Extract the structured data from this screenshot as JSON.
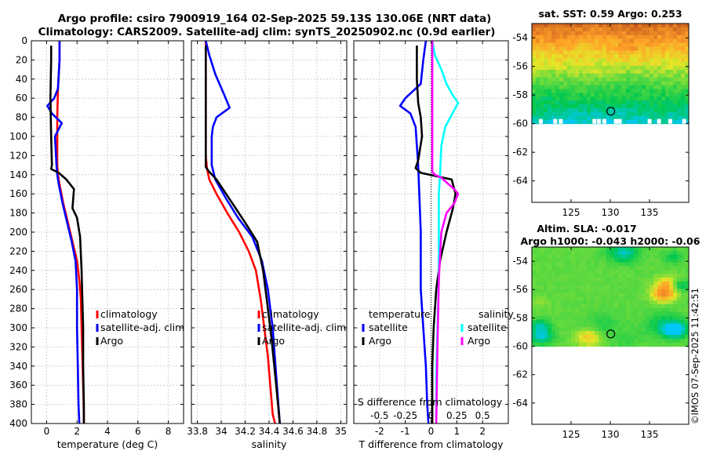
{
  "figure": {
    "title_line1": "Argo profile: csiro 7900919_164 02-Sep-2025 59.13S 130.06E (NRT data)",
    "title_line2": "Climatology: CARS2009. Satellite-adj clim: synTS_20250902.nc (0.9d earlier)",
    "credit": "©IMOS 07-Sep-2025 11:42:51"
  },
  "depth_axis": {
    "ylim": [
      0,
      400
    ],
    "ticks": [
      0,
      20,
      40,
      60,
      80,
      100,
      120,
      140,
      160,
      180,
      200,
      220,
      240,
      260,
      280,
      300,
      320,
      340,
      360,
      380,
      400
    ],
    "ticks_labeled_on": "left panel only"
  },
  "colors": {
    "climatology": "#ff0000",
    "satellite": "#0000ff",
    "argo": "#000000",
    "salinity_satellite": "#00ffff",
    "salinity_argo": "#ff00ff",
    "zero_line": "#000000",
    "map_circle": "#000000"
  },
  "chart_data": [
    {
      "id": "temperature",
      "type": "line",
      "xlabel": "temperature (deg C)",
      "ylabel": "",
      "xlim": [
        -1,
        9
      ],
      "ylim": [
        400,
        0
      ],
      "xticks": [
        0,
        2,
        4,
        6,
        8
      ],
      "xtick_labels": [
        "0",
        "2",
        "4",
        "6",
        "8"
      ],
      "grid": true,
      "legend_position": "lower-right",
      "series": [
        {
          "name": "climatology",
          "color": "#ff0000",
          "x": [
            0.85,
            0.85,
            0.75,
            0.7,
            0.7,
            0.7,
            0.75,
            0.85,
            1.1,
            1.4,
            1.7,
            2.0,
            2.15,
            2.25,
            2.3,
            2.35,
            2.4,
            2.45,
            2.45
          ],
          "y": [
            0,
            20,
            50,
            80,
            110,
            130,
            140,
            150,
            170,
            190,
            210,
            230,
            250,
            270,
            300,
            330,
            360,
            390,
            400
          ]
        },
        {
          "name": "satellite-adj. clim",
          "color": "#0000ff",
          "x": [
            0.85,
            0.85,
            0.75,
            0.5,
            0.05,
            0.35,
            1.0,
            0.55,
            0.65,
            0.7,
            0.8,
            1.05,
            1.35,
            1.65,
            1.9,
            2.0,
            2.0,
            2.05,
            2.1,
            2.15
          ],
          "y": [
            0,
            20,
            50,
            60,
            68,
            76,
            86,
            100,
            130,
            140,
            150,
            170,
            190,
            210,
            230,
            260,
            300,
            340,
            380,
            400
          ]
        },
        {
          "name": "Argo",
          "color": "#000000",
          "x": [
            0.3,
            0.3,
            0.25,
            0.3,
            0.35,
            0.3,
            0.8,
            1.3,
            1.8,
            1.7,
            2.0,
            2.2,
            2.3,
            2.35,
            2.4,
            2.4,
            2.45,
            2.45
          ],
          "y": [
            5,
            20,
            60,
            100,
            130,
            134,
            138,
            145,
            155,
            175,
            185,
            205,
            240,
            270,
            300,
            340,
            380,
            400
          ]
        }
      ],
      "legend": [
        {
          "label": "climatology",
          "color": "#ff0000"
        },
        {
          "label": "satellite-adj. clim",
          "color": "#0000ff"
        },
        {
          "label": "Argo",
          "color": "#000000"
        }
      ]
    },
    {
      "id": "salinity",
      "type": "line",
      "xlabel": "salinity",
      "ylabel": "",
      "xlim": [
        33.75,
        35.05
      ],
      "ylim": [
        400,
        0
      ],
      "xticks": [
        33.8,
        34,
        34.2,
        34.4,
        34.6,
        34.8,
        35
      ],
      "xtick_labels": [
        "33.8",
        "34",
        "34.2",
        "34.4",
        "34.6",
        "34.8",
        "35"
      ],
      "grid": true,
      "legend_position": "lower-right",
      "series": [
        {
          "name": "climatology",
          "color": "#ff0000",
          "x": [
            33.87,
            33.87,
            33.87,
            33.87,
            33.88,
            33.9,
            33.96,
            34.05,
            34.15,
            34.23,
            34.29,
            34.33,
            34.36,
            34.39,
            34.41,
            34.43,
            34.45
          ],
          "y": [
            0,
            40,
            80,
            120,
            133,
            145,
            160,
            180,
            200,
            220,
            240,
            270,
            300,
            330,
            360,
            390,
            400
          ]
        },
        {
          "name": "satellite-adj. clim",
          "color": "#0000ff",
          "x": [
            33.87,
            33.9,
            33.95,
            34.02,
            34.07,
            33.96,
            33.93,
            33.92,
            33.92,
            33.95,
            34.04,
            34.14,
            34.26,
            34.34,
            34.39,
            34.43,
            34.46,
            34.49
          ],
          "y": [
            0,
            15,
            35,
            55,
            70,
            80,
            90,
            100,
            130,
            145,
            165,
            185,
            205,
            230,
            260,
            300,
            350,
            400
          ]
        },
        {
          "name": "Argo",
          "color": "#000000",
          "x": [
            33.87,
            33.87,
            33.87,
            33.87,
            33.87,
            33.9,
            33.96,
            34.04,
            34.12,
            34.2,
            34.3,
            34.35,
            34.38,
            34.42,
            34.46,
            34.49
          ],
          "y": [
            5,
            40,
            80,
            120,
            132,
            137,
            145,
            160,
            175,
            190,
            210,
            240,
            270,
            310,
            360,
            400
          ]
        }
      ],
      "legend": [
        {
          "label": "climatology",
          "color": "#ff0000"
        },
        {
          "label": "satellite-adj. clim",
          "color": "#0000ff"
        },
        {
          "label": "Argo",
          "color": "#000000"
        }
      ]
    },
    {
      "id": "difference",
      "type": "line",
      "xlabel": "T difference from climatology",
      "top_axis_label": "S difference from climatology",
      "xlim": [
        -3,
        3
      ],
      "ylim": [
        400,
        0
      ],
      "xticks": [
        -2,
        -1,
        0,
        1,
        2
      ],
      "xtick_labels": [
        "-2",
        "-1",
        "0",
        "1",
        "2"
      ],
      "s_ticks": [
        -0.5,
        -0.25,
        0,
        0.25,
        0.5
      ],
      "s_tick_labels": [
        "-0.5",
        "-0.25",
        "0",
        "0.25",
        "0.5"
      ],
      "s_scale": 4,
      "zero_line": "dotted",
      "grid": true,
      "series": [
        {
          "name": "temperature satellite",
          "color": "#0000ff",
          "x": [
            -0.2,
            -0.3,
            -0.4,
            -1.0,
            -1.2,
            -0.8,
            -0.6,
            -0.5,
            -0.4,
            -0.4,
            -0.3,
            -0.2,
            -0.15,
            -0.1
          ],
          "y": [
            0,
            20,
            45,
            60,
            68,
            76,
            90,
            130,
            200,
            260,
            300,
            340,
            380,
            400
          ]
        },
        {
          "name": "temperature Argo",
          "color": "#000000",
          "x": [
            -0.55,
            -0.55,
            -0.5,
            -0.4,
            -0.35,
            -0.5,
            -0.6,
            -0.4,
            0.8,
            0.95,
            0.85,
            0.6,
            0.35,
            0.2,
            0.1,
            0.05,
            0.05,
            0.05
          ],
          "y": [
            5,
            40,
            65,
            80,
            100,
            125,
            133,
            138,
            145,
            160,
            175,
            200,
            230,
            260,
            300,
            340,
            380,
            400
          ]
        },
        {
          "name": "salinity satellite",
          "color": "#00ffff",
          "x": [
            0.05,
            0.15,
            0.4,
            0.6,
            0.8,
            1.05,
            0.85,
            0.55,
            0.4,
            0.35,
            0.3,
            0.3,
            0.3,
            0.25,
            0.2,
            0.2
          ],
          "y": [
            0,
            15,
            30,
            45,
            55,
            65,
            75,
            90,
            110,
            140,
            160,
            200,
            250,
            300,
            350,
            400
          ]
        },
        {
          "name": "salinity Argo",
          "color": "#ff00ff",
          "x": [
            0.05,
            0.05,
            0.05,
            0.05,
            0.05,
            0.05,
            0.15,
            0.4,
            0.6,
            0.9,
            1.05,
            0.9,
            0.6,
            0.4,
            0.3,
            0.25,
            0.2
          ],
          "y": [
            0,
            40,
            80,
            120,
            133,
            137,
            140,
            143,
            148,
            155,
            160,
            170,
            180,
            200,
            250,
            320,
            400
          ]
        }
      ],
      "legend_temperature": {
        "header": "temperature",
        "items": [
          {
            "label": "satellite",
            "color": "#0000ff"
          },
          {
            "label": "Argo",
            "color": "#000000"
          }
        ]
      },
      "legend_salinity": {
        "header": "salinity",
        "items": [
          {
            "label": "satellite",
            "color": "#00ffff"
          },
          {
            "label": "Argo",
            "color": "#ff00ff"
          }
        ]
      }
    }
  ],
  "maps": [
    {
      "id": "sst-map",
      "type": "heatmap",
      "title_lines": [
        "sat. SST: 0.59 Argo: 0.253"
      ],
      "xlim": [
        120,
        140
      ],
      "ylim": [
        -65.5,
        -53
      ],
      "xticks": [
        125,
        130,
        135
      ],
      "yticks": [
        -54,
        -56,
        -58,
        -60,
        -62,
        -64
      ],
      "xtick_labels": [
        "125",
        "130",
        "135"
      ],
      "ytick_labels": [
        "-54",
        "-56",
        "-58",
        "-60",
        "-62",
        "-64"
      ],
      "data_extent_lat": [
        -60,
        -53
      ],
      "argo_position": {
        "lon": 130.06,
        "lat": -59.13
      }
    },
    {
      "id": "sla-map",
      "type": "heatmap",
      "title_lines": [
        "Altim. SLA: -0.017",
        "Argo h1000: -0.043 h2000: -0.06"
      ],
      "xlim": [
        120,
        140
      ],
      "ylim": [
        -65.5,
        -53
      ],
      "xticks": [
        125,
        130,
        135
      ],
      "yticks": [
        -54,
        -56,
        -58,
        -60,
        -62,
        -64
      ],
      "xtick_labels": [
        "125",
        "130",
        "135"
      ],
      "ytick_labels": [
        "-54",
        "-56",
        "-58",
        "-60",
        "-62",
        "-64"
      ],
      "data_extent_lat": [
        -60,
        -53
      ],
      "argo_position": {
        "lon": 130.06,
        "lat": -59.13
      }
    }
  ]
}
